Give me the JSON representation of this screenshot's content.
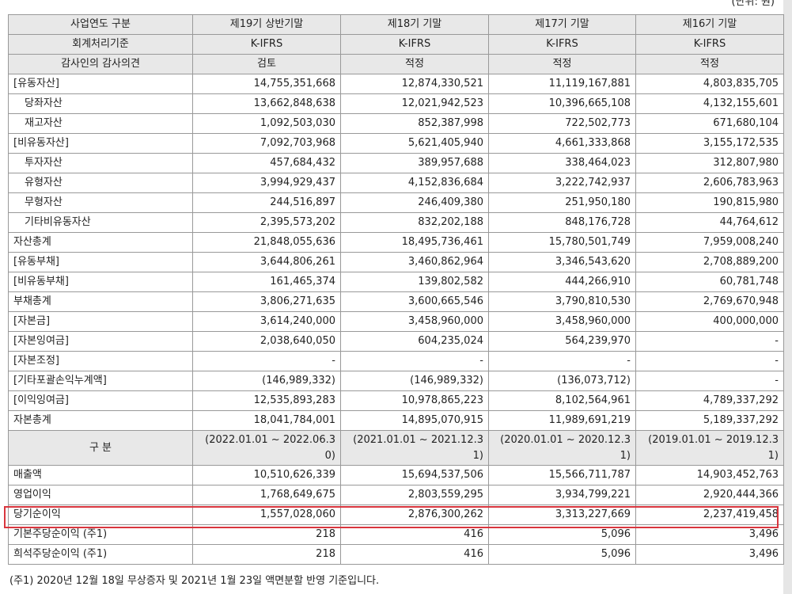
{
  "unit": "(단위: 원)",
  "table": {
    "header": [
      [
        "사업연도 구분",
        "제19기 상반기말",
        "제18기 기말",
        "제17기 기말",
        "제16기 기말"
      ],
      [
        "회계처리기준",
        "K-IFRS",
        "K-IFRS",
        "K-IFRS",
        "K-IFRS"
      ],
      [
        "감사인의 감사의견",
        "검토",
        "적정",
        "적정",
        "적정"
      ]
    ],
    "rows": [
      [
        "[유동자산]",
        "14,755,351,668",
        "12,874,330,521",
        "11,119,167,881",
        "4,803,835,705"
      ],
      [
        "당좌자산",
        "13,662,848,638",
        "12,021,942,523",
        "10,396,665,108",
        "4,132,155,601"
      ],
      [
        "재고자산",
        "1,092,503,030",
        "852,387,998",
        "722,502,773",
        "671,680,104"
      ],
      [
        "[비유동자산]",
        "7,092,703,968",
        "5,621,405,940",
        "4,661,333,868",
        "3,155,172,535"
      ],
      [
        "투자자산",
        "457,684,432",
        "389,957,688",
        "338,464,023",
        "312,807,980"
      ],
      [
        "유형자산",
        "3,994,929,437",
        "4,152,836,684",
        "3,222,742,937",
        "2,606,783,963"
      ],
      [
        "무형자산",
        "244,516,897",
        "246,409,380",
        "251,950,180",
        "190,815,980"
      ],
      [
        "기타비유동자산",
        "2,395,573,202",
        "832,202,188",
        "848,176,728",
        "44,764,612"
      ],
      [
        "자산총계",
        "21,848,055,636",
        "18,495,736,461",
        "15,780,501,749",
        "7,959,008,240"
      ],
      [
        "[유동부채]",
        "3,644,806,261",
        "3,460,862,964",
        "3,346,543,620",
        "2,708,889,200"
      ],
      [
        "[비유동부채]",
        "161,465,374",
        "139,802,582",
        "444,266,910",
        "60,781,748"
      ],
      [
        "부채총계",
        "3,806,271,635",
        "3,600,665,546",
        "3,790,810,530",
        "2,769,670,948"
      ],
      [
        "[자본금]",
        "3,614,240,000",
        "3,458,960,000",
        "3,458,960,000",
        "400,000,000"
      ],
      [
        "[자본잉여금]",
        "2,038,640,050",
        "604,235,024",
        "564,239,970",
        "-"
      ],
      [
        "[자본조정]",
        "-",
        "-",
        "-",
        "-"
      ],
      [
        "[기타포괄손익누계액]",
        "(146,989,332)",
        "(146,989,332)",
        "(136,073,712)",
        "-"
      ],
      [
        "[이익잉여금]",
        "12,535,893,283",
        "10,978,865,223",
        "8,102,564,961",
        "4,789,337,292"
      ],
      [
        "자본총계",
        "18,041,784,001",
        "14,895,070,915",
        "11,989,691,219",
        "5,189,337,292"
      ]
    ],
    "period_header": [
      "구 분",
      "(2022.01.01 ~ 2022.06.30)",
      "(2021.01.01 ~ 2021.12.31)",
      "(2020.01.01 ~ 2020.12.31)",
      "(2019.01.01 ~ 2019.12.31)"
    ],
    "income_rows": [
      [
        "매출액",
        "10,510,626,339",
        "15,694,537,506",
        "15,566,711,787",
        "14,903,452,763"
      ],
      [
        "영업이익",
        "1,768,649,675",
        "2,803,559,295",
        "3,934,799,221",
        "2,920,444,366"
      ],
      [
        "당기순이익",
        "1,557,028,060",
        "2,876,300,262",
        "3,313,227,669",
        "2,237,419,458"
      ],
      [
        "기본주당순이익 (주1)",
        "218",
        "416",
        "5,096",
        "3,496"
      ],
      [
        "희석주당순이익 (주1)",
        "218",
        "416",
        "5,096",
        "3,496"
      ]
    ]
  },
  "footnote": "(주1) 2020년 12월 18일 무상증자 및 2021년 1월 23일 액면분할 반영 기준입니다."
}
